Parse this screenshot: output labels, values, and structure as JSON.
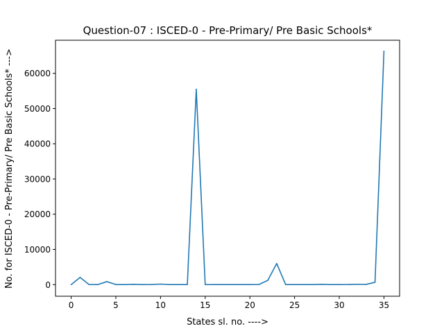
{
  "chart_data": {
    "type": "line",
    "title": "Question-07 : ISCED-0 - Pre-Primary/ Pre Basic Schools*",
    "xlabel": "States sl. no. ---->",
    "ylabel": "No. for ISCED-0 - Pre-Primary/ Pre Basic Schools* --->",
    "xlim": [
      -1.75,
      36.75
    ],
    "ylim": [
      -3300,
      69400
    ],
    "xticks": [
      0,
      5,
      10,
      15,
      20,
      25,
      30,
      35
    ],
    "yticks": [
      0,
      10000,
      20000,
      30000,
      40000,
      50000,
      60000
    ],
    "grid": false,
    "series": [
      {
        "color": "#1f77b4",
        "x": [
          0,
          1,
          2,
          3,
          4,
          5,
          6,
          7,
          8,
          9,
          10,
          11,
          12,
          13,
          14,
          15,
          16,
          17,
          18,
          19,
          20,
          21,
          22,
          23,
          24,
          25,
          26,
          27,
          28,
          29,
          30,
          31,
          32,
          33,
          34,
          35
        ],
        "y": [
          0,
          2050,
          30,
          20,
          850,
          20,
          10,
          80,
          20,
          30,
          150,
          20,
          10,
          10,
          55500,
          0,
          10,
          10,
          10,
          10,
          20,
          30,
          1200,
          6000,
          10,
          10,
          10,
          10,
          80,
          10,
          20,
          30,
          100,
          60,
          650,
          66300
        ]
      }
    ]
  }
}
